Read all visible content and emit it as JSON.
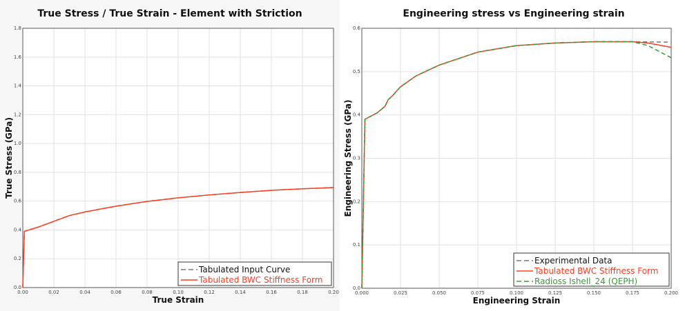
{
  "chart_data": [
    {
      "type": "line",
      "title": "True Stress / True Strain - Element with Striction",
      "xlabel": "True Strain",
      "ylabel": "True Stress (GPa)",
      "xlim": [
        0,
        0.2
      ],
      "ylim": [
        0,
        1.8
      ],
      "grid": true,
      "legend_placement": "bottom-right",
      "xticks": [
        "0.00",
        "0.02",
        "0.04",
        "0.06",
        "0.08",
        "0.10",
        "0.12",
        "0.14",
        "0.16",
        "0.18",
        "0.20"
      ],
      "yticks": [
        "0.0",
        "0.2",
        "0.4",
        "0.6",
        "0.8",
        "1.0",
        "1.2",
        "1.4",
        "1.6",
        "1.8"
      ],
      "series": [
        {
          "name": "Tabulated Input Curve",
          "color": "#777777",
          "dash": true,
          "x": [
            0,
            0.001,
            0.01,
            0.02,
            0.03,
            0.04,
            0.06,
            0.08,
            0.1,
            0.12,
            0.14,
            0.16,
            0.18,
            0.2
          ],
          "y": [
            0,
            0.39,
            0.42,
            0.46,
            0.5,
            0.525,
            0.565,
            0.598,
            0.623,
            0.643,
            0.66,
            0.675,
            0.686,
            0.694
          ]
        },
        {
          "name": "Tabulated BWC Stiffness Form",
          "color": "#ff3b1f",
          "dash": false,
          "x": [
            0,
            0.001,
            0.01,
            0.02,
            0.03,
            0.04,
            0.06,
            0.08,
            0.1,
            0.12,
            0.14,
            0.16,
            0.18,
            0.2
          ],
          "y": [
            0,
            0.39,
            0.42,
            0.46,
            0.5,
            0.525,
            0.565,
            0.598,
            0.623,
            0.643,
            0.66,
            0.675,
            0.686,
            0.694
          ]
        }
      ]
    },
    {
      "type": "line",
      "title": "Engineering stress vs Engineering strain",
      "xlabel": "Engineering Strain",
      "ylabel": "Engineering Stress (GPa)",
      "xlim": [
        0,
        0.2
      ],
      "ylim": [
        0,
        0.6
      ],
      "grid": true,
      "legend_placement": "bottom-right",
      "xticks": [
        "0.000",
        "0.025",
        "0.050",
        "0.075",
        "0.100",
        "0.125",
        "0.150",
        "0.175",
        "0.200"
      ],
      "yticks": [
        "0.0",
        "0.1",
        "0.2",
        "0.3",
        "0.4",
        "0.5",
        "0.6"
      ],
      "series": [
        {
          "name": "Experimental Data",
          "color": "#777777",
          "dash": true,
          "x": [
            0,
            0.002,
            0.01,
            0.015,
            0.017,
            0.02,
            0.025,
            0.035,
            0.05,
            0.075,
            0.1,
            0.125,
            0.15,
            0.175,
            0.2
          ],
          "y": [
            0,
            0.39,
            0.405,
            0.42,
            0.435,
            0.445,
            0.465,
            0.49,
            0.515,
            0.545,
            0.56,
            0.566,
            0.569,
            0.569,
            0.568
          ]
        },
        {
          "name": "Tabulated BWC Stiffness Form",
          "color": "#ff3b1f",
          "dash": false,
          "x": [
            0,
            0.002,
            0.01,
            0.015,
            0.017,
            0.02,
            0.025,
            0.035,
            0.05,
            0.075,
            0.1,
            0.125,
            0.15,
            0.175,
            0.185,
            0.2
          ],
          "y": [
            0,
            0.39,
            0.405,
            0.42,
            0.435,
            0.445,
            0.465,
            0.49,
            0.515,
            0.545,
            0.56,
            0.566,
            0.569,
            0.569,
            0.566,
            0.556
          ]
        },
        {
          "name": "Radioss Ishell_24 (QEPH)",
          "color": "#3a9a3a",
          "dash": true,
          "x": [
            0,
            0.002,
            0.01,
            0.015,
            0.017,
            0.02,
            0.025,
            0.035,
            0.05,
            0.075,
            0.1,
            0.125,
            0.15,
            0.175,
            0.185,
            0.2
          ],
          "y": [
            0,
            0.39,
            0.405,
            0.42,
            0.435,
            0.445,
            0.465,
            0.49,
            0.515,
            0.545,
            0.56,
            0.566,
            0.569,
            0.569,
            0.56,
            0.532
          ]
        }
      ]
    }
  ]
}
